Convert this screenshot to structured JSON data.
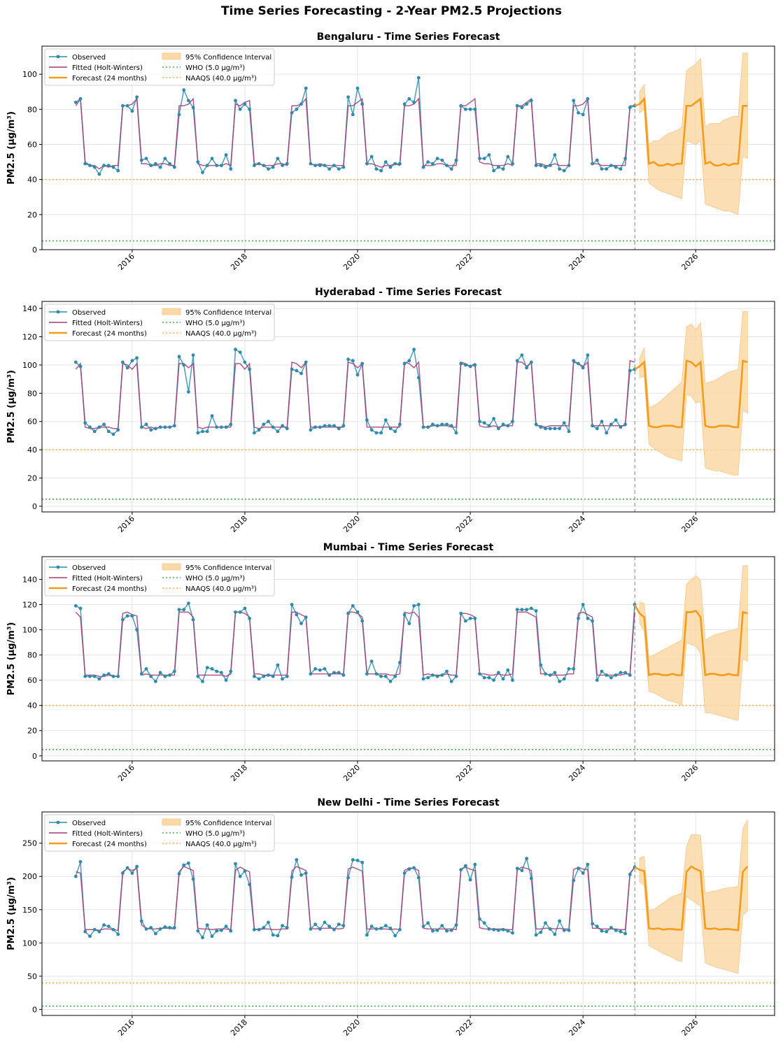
{
  "figure": {
    "suptitle": "Time Series Forecasting - 2-Year PM2.5 Projections"
  },
  "colors": {
    "observed": "#2e8bab",
    "fitted": "#a23b72",
    "forecast": "#f39c1b",
    "ci": "#fbd8a8",
    "who": "#4caf50",
    "naaqs": "#f3b04a",
    "divider": "#999999"
  },
  "legend": {
    "observed": "Observed",
    "fitted": "Fitted (Holt-Winters)",
    "forecast": "Forecast (24 months)",
    "ci": "95% Confidence Interval",
    "who": "WHO (5.0 µg/m³)",
    "naaqs": "NAAQS (40.0 µg/m³)"
  },
  "chart_data": [
    {
      "type": "line",
      "title": "Bengaluru - Time Series Forecast",
      "ylabel": "PM2.5 (µg/m³)",
      "xlim": [
        2014.4,
        2027.4
      ],
      "ylim": [
        0,
        116
      ],
      "yticks": [
        0,
        20,
        40,
        60,
        80,
        100
      ],
      "xticks": [
        "2016",
        "2018",
        "2020",
        "2022",
        "2024",
        "2026"
      ],
      "legend_loc": "upper-left",
      "grid": true,
      "who": 5.0,
      "naaqs": 40.0,
      "forecast_start": 2024.92,
      "observed_start": 2015.0,
      "observed": [
        84,
        86,
        49,
        48,
        47,
        43,
        48,
        48,
        47,
        45,
        82,
        82,
        79,
        87,
        51,
        52,
        48,
        49,
        47,
        52,
        49,
        47,
        77,
        91,
        85,
        81,
        50,
        44,
        48,
        52,
        48,
        48,
        54,
        46,
        85,
        80,
        83,
        80,
        48,
        49,
        48,
        46,
        47,
        52,
        48,
        49,
        78,
        80,
        83,
        92,
        49,
        48,
        48,
        48,
        46,
        48,
        46,
        47,
        87,
        77,
        92,
        83,
        49,
        53,
        46,
        45,
        50,
        47,
        49,
        49,
        83,
        86,
        84,
        98,
        47,
        50,
        49,
        52,
        51,
        48,
        46,
        51,
        82,
        80,
        80,
        80,
        52,
        52,
        54,
        45,
        47,
        46,
        53,
        49,
        82,
        81,
        83,
        85,
        48,
        48,
        47,
        48,
        54,
        46,
        45,
        48,
        85,
        78,
        77,
        86,
        49,
        51,
        46,
        46,
        48,
        47,
        46,
        52,
        81,
        82
      ],
      "fitted": [
        82,
        86,
        50,
        48,
        48,
        46,
        48,
        47,
        48,
        48,
        82,
        82,
        83,
        86,
        49,
        49,
        48,
        48,
        49,
        49,
        48,
        48,
        82,
        82,
        83,
        86,
        49,
        48,
        48,
        48,
        48,
        48,
        49,
        48,
        83,
        82,
        84,
        85,
        49,
        49,
        48,
        48,
        48,
        49,
        49,
        48,
        82,
        82,
        83,
        86,
        49,
        48,
        49,
        48,
        48,
        48,
        48,
        48,
        82,
        82,
        84,
        86,
        49,
        49,
        48,
        47,
        48,
        48,
        49,
        48,
        82,
        82,
        83,
        86,
        48,
        48,
        48,
        49,
        49,
        48,
        48,
        48,
        82,
        82,
        84,
        86,
        50,
        49,
        49,
        48,
        48,
        48,
        49,
        48,
        82,
        82,
        84,
        86,
        49,
        49,
        48,
        48,
        49,
        48,
        48,
        48,
        82,
        82,
        83,
        86,
        49,
        49,
        48,
        48,
        48,
        48,
        48,
        48,
        82,
        82
      ],
      "forecast": [
        83,
        86,
        49,
        50,
        48,
        48,
        49,
        48,
        49,
        49,
        82,
        82,
        84,
        86,
        49,
        50,
        48,
        48,
        49,
        48,
        49,
        49,
        82,
        82
      ],
      "ci_upper": [
        90,
        94,
        60,
        62,
        62,
        64,
        66,
        67,
        68,
        70,
        102,
        104,
        106,
        109,
        70,
        72,
        72,
        72,
        74,
        75,
        76,
        76,
        112,
        112
      ],
      "ci_lower": [
        78,
        80,
        38,
        36,
        34,
        33,
        32,
        31,
        30,
        29,
        62,
        61,
        60,
        62,
        26,
        25,
        24,
        23,
        22,
        22,
        21,
        20,
        53,
        52
      ]
    },
    {
      "type": "line",
      "title": "Hyderabad - Time Series Forecast",
      "ylabel": "PM2.5 (µg/m³)",
      "xlim": [
        2014.4,
        2027.4
      ],
      "ylim": [
        -4,
        145
      ],
      "yticks": [
        0,
        20,
        40,
        60,
        80,
        100,
        120,
        140
      ],
      "xticks": [
        "2016",
        "2018",
        "2020",
        "2022",
        "2024",
        "2026"
      ],
      "legend_loc": "upper-left",
      "grid": true,
      "who": 5.0,
      "naaqs": 40.0,
      "forecast_start": 2024.92,
      "observed_start": 2015.0,
      "observed": [
        102,
        99,
        59,
        56,
        53,
        56,
        58,
        53,
        51,
        54,
        102,
        98,
        103,
        105,
        56,
        58,
        54,
        55,
        56,
        56,
        56,
        57,
        106,
        100,
        81,
        107,
        52,
        53,
        53,
        64,
        56,
        56,
        56,
        58,
        111,
        109,
        102,
        97,
        52,
        54,
        58,
        60,
        56,
        53,
        57,
        55,
        97,
        96,
        94,
        102,
        54,
        56,
        56,
        57,
        57,
        57,
        55,
        57,
        104,
        103,
        93,
        101,
        61,
        54,
        52,
        52,
        61,
        55,
        53,
        58,
        101,
        103,
        111,
        91,
        56,
        56,
        58,
        57,
        58,
        58,
        57,
        52,
        101,
        100,
        99,
        100,
        60,
        59,
        57,
        62,
        55,
        58,
        57,
        60,
        103,
        107,
        98,
        102,
        58,
        56,
        55,
        55,
        55,
        55,
        59,
        53,
        103,
        101,
        98,
        107,
        57,
        55,
        60,
        52,
        58,
        61,
        56,
        58,
        96,
        97
      ],
      "fitted": [
        97,
        101,
        56,
        55,
        55,
        56,
        56,
        56,
        55,
        55,
        101,
        100,
        97,
        101,
        56,
        55,
        56,
        55,
        56,
        56,
        56,
        57,
        101,
        101,
        98,
        101,
        56,
        55,
        56,
        56,
        56,
        56,
        56,
        56,
        101,
        101,
        97,
        101,
        56,
        55,
        56,
        56,
        56,
        56,
        56,
        56,
        102,
        101,
        98,
        102,
        56,
        56,
        56,
        56,
        56,
        56,
        56,
        56,
        102,
        101,
        98,
        101,
        56,
        56,
        56,
        56,
        56,
        56,
        56,
        56,
        102,
        101,
        98,
        102,
        56,
        56,
        57,
        57,
        57,
        57,
        56,
        56,
        102,
        101,
        99,
        101,
        57,
        56,
        56,
        57,
        56,
        57,
        57,
        57,
        102,
        102,
        99,
        102,
        57,
        57,
        56,
        57,
        57,
        57,
        57,
        57,
        102,
        101,
        99,
        102,
        57,
        57,
        57,
        57,
        57,
        57,
        57,
        57,
        103,
        102
      ],
      "forecast": [
        99,
        102,
        57,
        56,
        56,
        57,
        57,
        57,
        56,
        56,
        103,
        102,
        99,
        102,
        57,
        56,
        56,
        57,
        57,
        57,
        56,
        56,
        103,
        102
      ],
      "ci_upper": [
        105,
        112,
        70,
        71,
        73,
        76,
        79,
        82,
        85,
        88,
        127,
        129,
        125,
        130,
        87,
        88,
        89,
        91,
        93,
        95,
        96,
        97,
        138,
        138
      ],
      "ci_lower": [
        91,
        92,
        44,
        41,
        39,
        37,
        35,
        34,
        33,
        32,
        79,
        78,
        73,
        74,
        27,
        26,
        25,
        25,
        24,
        23,
        22,
        22,
        68,
        66
      ]
    },
    {
      "type": "line",
      "title": "Mumbai - Time Series Forecast",
      "ylabel": "PM2.5 (µg/m³)",
      "xlim": [
        2014.4,
        2027.4
      ],
      "ylim": [
        -4,
        158
      ],
      "yticks": [
        0,
        20,
        40,
        60,
        80,
        100,
        120,
        140
      ],
      "xticks": [
        "2016",
        "2018",
        "2020",
        "2022",
        "2024",
        "2026"
      ],
      "legend_loc": "upper-left",
      "grid": true,
      "who": 5.0,
      "naaqs": 40.0,
      "forecast_start": 2024.92,
      "observed_start": 2015.0,
      "observed": [
        119,
        117,
        63,
        63,
        63,
        61,
        64,
        65,
        63,
        63,
        108,
        111,
        111,
        100,
        65,
        69,
        63,
        59,
        66,
        63,
        64,
        67,
        116,
        116,
        121,
        108,
        63,
        59,
        70,
        69,
        67,
        66,
        60,
        67,
        114,
        114,
        117,
        109,
        63,
        61,
        63,
        64,
        63,
        72,
        61,
        63,
        120,
        112,
        105,
        110,
        65,
        69,
        68,
        69,
        64,
        66,
        66,
        64,
        113,
        119,
        114,
        107,
        65,
        75,
        65,
        63,
        63,
        59,
        63,
        74,
        112,
        105,
        119,
        120,
        61,
        62,
        64,
        63,
        64,
        67,
        59,
        63,
        113,
        107,
        109,
        109,
        65,
        62,
        62,
        60,
        66,
        61,
        68,
        60,
        116,
        116,
        116,
        117,
        115,
        72,
        65,
        64,
        66,
        59,
        61,
        69,
        69,
        109,
        120,
        109,
        107,
        60,
        67,
        64,
        62,
        64,
        66,
        66,
        64,
        120
      ],
      "fitted": [
        114,
        110,
        64,
        64,
        64,
        63,
        63,
        64,
        63,
        63,
        113,
        114,
        112,
        111,
        64,
        65,
        64,
        64,
        64,
        64,
        64,
        64,
        114,
        114,
        114,
        110,
        64,
        64,
        64,
        64,
        64,
        64,
        63,
        65,
        114,
        114,
        113,
        110,
        65,
        65,
        64,
        64,
        64,
        64,
        64,
        64,
        114,
        114,
        112,
        110,
        65,
        65,
        65,
        65,
        65,
        65,
        65,
        65,
        114,
        114,
        113,
        110,
        65,
        65,
        65,
        65,
        65,
        64,
        64,
        65,
        114,
        113,
        114,
        110,
        64,
        65,
        64,
        64,
        64,
        65,
        64,
        64,
        113,
        113,
        112,
        110,
        65,
        65,
        64,
        64,
        65,
        64,
        64,
        65,
        114,
        114,
        114,
        112,
        110,
        65,
        65,
        64,
        64,
        64,
        64,
        65,
        65,
        113,
        114,
        112,
        110,
        64,
        64,
        64,
        64,
        64,
        64,
        65,
        65,
        114
      ],
      "forecast": [
        113,
        110,
        64,
        65,
        65,
        64,
        64,
        65,
        64,
        64,
        114,
        114,
        115,
        110,
        64,
        65,
        65,
        64,
        64,
        65,
        64,
        64,
        114,
        113
      ],
      "ci_upper": [
        122,
        121,
        78,
        80,
        82,
        84,
        86,
        88,
        90,
        92,
        136,
        140,
        143,
        139,
        92,
        94,
        96,
        97,
        98,
        99,
        100,
        101,
        151,
        151
      ],
      "ci_lower": [
        105,
        99,
        51,
        50,
        48,
        46,
        44,
        43,
        42,
        40,
        90,
        88,
        87,
        81,
        34,
        34,
        33,
        32,
        31,
        30,
        29,
        28,
        77,
        75
      ]
    },
    {
      "type": "line",
      "title": "New Delhi - Time Series Forecast",
      "ylabel": "PM2.5 (µg/m³)",
      "xlim": [
        2014.4,
        2027.4
      ],
      "ylim": [
        -9,
        297
      ],
      "yticks": [
        0,
        50,
        100,
        150,
        200,
        250
      ],
      "xticks": [
        "2016",
        "2018",
        "2020",
        "2022",
        "2024",
        "2026"
      ],
      "legend_loc": "upper-left",
      "grid": true,
      "who": 5.0,
      "naaqs": 40.0,
      "forecast_start": 2024.92,
      "observed_start": 2015.0,
      "observed": [
        200,
        222,
        117,
        110,
        120,
        117,
        127,
        125,
        120,
        113,
        205,
        213,
        205,
        215,
        133,
        121,
        123,
        114,
        121,
        124,
        123,
        123,
        204,
        217,
        220,
        196,
        118,
        108,
        127,
        110,
        118,
        119,
        125,
        118,
        219,
        200,
        208,
        188,
        120,
        120,
        123,
        131,
        112,
        111,
        126,
        123,
        199,
        225,
        202,
        205,
        121,
        128,
        121,
        131,
        125,
        120,
        128,
        126,
        198,
        225,
        224,
        221,
        112,
        125,
        121,
        122,
        126,
        122,
        111,
        120,
        205,
        211,
        213,
        198,
        125,
        130,
        118,
        119,
        126,
        118,
        119,
        127,
        210,
        216,
        195,
        218,
        136,
        130,
        121,
        120,
        119,
        120,
        118,
        115,
        212,
        209,
        227,
        197,
        112,
        116,
        130,
        121,
        113,
        133,
        119,
        119,
        194,
        212,
        205,
        218,
        129,
        125,
        118,
        117,
        123,
        119,
        117,
        114,
        203,
        214
      ],
      "fitted": [
        207,
        205,
        120,
        120,
        120,
        119,
        121,
        121,
        120,
        119,
        207,
        212,
        209,
        212,
        127,
        122,
        121,
        121,
        122,
        122,
        122,
        121,
        207,
        215,
        212,
        209,
        122,
        121,
        121,
        120,
        121,
        121,
        121,
        120,
        209,
        214,
        210,
        207,
        121,
        120,
        121,
        121,
        120,
        120,
        121,
        121,
        208,
        215,
        212,
        209,
        122,
        121,
        122,
        122,
        122,
        122,
        121,
        122,
        211,
        214,
        211,
        208,
        121,
        121,
        121,
        121,
        121,
        120,
        121,
        120,
        209,
        213,
        212,
        209,
        122,
        121,
        121,
        121,
        121,
        121,
        121,
        120,
        210,
        214,
        211,
        209,
        123,
        121,
        121,
        121,
        121,
        121,
        120,
        120,
        210,
        214,
        212,
        209,
        121,
        121,
        122,
        122,
        121,
        122,
        121,
        121,
        210,
        214,
        211,
        210,
        122,
        122,
        121,
        121,
        121,
        121,
        120,
        120,
        205,
        214
      ],
      "forecast": [
        210,
        208,
        122,
        121,
        122,
        120,
        121,
        121,
        120,
        120,
        207,
        215,
        211,
        208,
        122,
        121,
        122,
        120,
        121,
        121,
        120,
        119,
        207,
        215
      ],
      "ci_upper": [
        228,
        230,
        148,
        150,
        155,
        160,
        165,
        170,
        172,
        175,
        245,
        263,
        263,
        262,
        175,
        177,
        178,
        180,
        182,
        183,
        184,
        185,
        272,
        285
      ],
      "ci_lower": [
        192,
        186,
        96,
        92,
        88,
        84,
        81,
        78,
        74,
        72,
        170,
        165,
        160,
        155,
        70,
        67,
        64,
        62,
        60,
        58,
        56,
        54,
        142,
        148
      ]
    }
  ]
}
